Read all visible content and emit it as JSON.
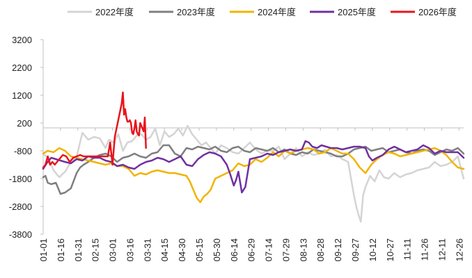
{
  "chart_data": {
    "type": "line",
    "title": "",
    "xlabel": "",
    "ylabel": "",
    "ylim": [
      -3800,
      3200
    ],
    "yticks": [
      3200,
      2200,
      1200,
      200,
      -800,
      -1800,
      -2800,
      -3800
    ],
    "xlim": [
      1,
      365
    ],
    "xtick_days": [
      1,
      16,
      31,
      46,
      61,
      76,
      91,
      106,
      121,
      136,
      151,
      166,
      181,
      196,
      211,
      226,
      241,
      256,
      271,
      286,
      301,
      316,
      331,
      346,
      361
    ],
    "xtick_labels": [
      "01-01",
      "01-16",
      "01-31",
      "02-15",
      "03-01",
      "03-16",
      "03-31",
      "04-15",
      "04-30",
      "05-15",
      "05-30",
      "06-14",
      "06-29",
      "07-14",
      "07-29",
      "08-13",
      "08-28",
      "09-12",
      "09-27",
      "10-12",
      "10-27",
      "11-11",
      "11-26",
      "12-11",
      "12-26"
    ],
    "grid": false,
    "legend_position": "top",
    "x_unit": "day of year",
    "series": [
      {
        "name": "2022年度",
        "color": "#d4d4d4",
        "x": [
          1,
          6,
          10,
          15,
          20,
          25,
          30,
          35,
          40,
          45,
          50,
          55,
          58,
          62,
          66,
          70,
          74,
          78,
          82,
          86,
          90,
          94,
          98,
          102,
          106,
          110,
          114,
          118,
          122,
          126,
          130,
          134,
          138,
          142,
          146,
          150,
          155,
          160,
          165,
          170,
          175,
          180,
          185,
          190,
          195,
          200,
          205,
          210,
          215,
          220,
          225,
          230,
          235,
          240,
          245,
          250,
          255,
          260,
          265,
          270,
          272,
          274,
          276,
          278,
          280,
          284,
          288,
          292,
          296,
          300,
          305,
          310,
          315,
          320,
          325,
          330,
          335,
          340,
          345,
          350,
          355,
          360,
          365
        ],
        "y": [
          -900,
          -1100,
          -1500,
          -1750,
          -1550,
          -1200,
          -1000,
          -150,
          -400,
          -300,
          -350,
          -700,
          -400,
          -500,
          -200,
          -800,
          -500,
          -450,
          -250,
          -200,
          -400,
          -300,
          0,
          -600,
          -100,
          -300,
          -200,
          0,
          -250,
          100,
          -200,
          -400,
          -600,
          -500,
          -700,
          -900,
          -600,
          -700,
          -850,
          -900,
          -700,
          -500,
          -750,
          -900,
          -800,
          -800,
          -650,
          -1100,
          -900,
          -700,
          -1000,
          -850,
          -950,
          -900,
          -750,
          -1000,
          -950,
          -1100,
          -1200,
          -2400,
          -2800,
          -3100,
          -3350,
          -2400,
          -2100,
          -1700,
          -1900,
          -1500,
          -1750,
          -1800,
          -1600,
          -1750,
          -1650,
          -1600,
          -1500,
          -1450,
          -1400,
          -1200,
          -1350,
          -1300,
          -1200,
          -1000,
          -1800
        ]
      },
      {
        "name": "2023年度",
        "color": "#7f7f7f",
        "x": [
          1,
          3,
          5,
          8,
          12,
          16,
          20,
          25,
          30,
          33,
          36,
          40,
          45,
          50,
          55,
          60,
          65,
          70,
          75,
          80,
          85,
          90,
          95,
          100,
          105,
          110,
          115,
          120,
          125,
          130,
          135,
          140,
          145,
          150,
          155,
          160,
          165,
          170,
          175,
          180,
          185,
          190,
          195,
          200,
          205,
          210,
          215,
          220,
          225,
          230,
          235,
          240,
          245,
          250,
          255,
          260,
          265,
          270,
          275,
          280,
          285,
          290,
          295,
          300,
          305,
          310,
          315,
          320,
          325,
          330,
          335,
          340,
          345,
          350,
          355,
          360,
          365
        ],
        "y": [
          -1750,
          -1700,
          -1950,
          -2000,
          -1950,
          -2350,
          -2300,
          -2150,
          -1600,
          -1400,
          -1300,
          -1200,
          -1050,
          -950,
          -900,
          -1000,
          -1200,
          -1050,
          -1000,
          -900,
          -1000,
          -1050,
          -900,
          -850,
          -600,
          -600,
          -900,
          -1000,
          -700,
          -750,
          -650,
          -700,
          -750,
          -650,
          -800,
          -850,
          -700,
          -650,
          -800,
          -850,
          -700,
          -750,
          -800,
          -700,
          -850,
          -750,
          -900,
          -950,
          -850,
          -900,
          -750,
          -800,
          -850,
          -900,
          -1000,
          -1000,
          -900,
          -750,
          -700,
          -650,
          -800,
          -750,
          -700,
          -850,
          -800,
          -750,
          -850,
          -900,
          -800,
          -750,
          -800,
          -950,
          -850,
          -750,
          -800,
          -700,
          -900
        ]
      },
      {
        "name": "2024年度",
        "color": "#f0b400",
        "x": [
          1,
          5,
          10,
          15,
          20,
          25,
          30,
          35,
          40,
          45,
          50,
          55,
          60,
          65,
          70,
          75,
          80,
          85,
          90,
          95,
          100,
          105,
          110,
          115,
          120,
          125,
          128,
          131,
          134,
          137,
          140,
          143,
          146,
          150,
          155,
          160,
          165,
          170,
          175,
          180,
          185,
          190,
          195,
          200,
          205,
          210,
          215,
          220,
          225,
          230,
          235,
          240,
          245,
          250,
          255,
          260,
          265,
          270,
          275,
          280,
          285,
          290,
          295,
          300,
          305,
          310,
          315,
          320,
          325,
          330,
          335,
          340,
          345,
          350,
          355,
          360,
          365
        ],
        "y": [
          -900,
          -800,
          -850,
          -700,
          -800,
          -1000,
          -1050,
          -1100,
          -1150,
          -1200,
          -1250,
          -1300,
          -1250,
          -1350,
          -1350,
          -1450,
          -1700,
          -1600,
          -1650,
          -1550,
          -1500,
          -1550,
          -1600,
          -1600,
          -1650,
          -1700,
          -1900,
          -2200,
          -2500,
          -2650,
          -2450,
          -2350,
          -2200,
          -1800,
          -1700,
          -1600,
          -1500,
          -1250,
          -1350,
          -1300,
          -1100,
          -1200,
          -1050,
          -850,
          -1000,
          -800,
          -900,
          -800,
          -750,
          -700,
          -750,
          -900,
          -850,
          -700,
          -800,
          -900,
          -900,
          -1100,
          -1400,
          -1600,
          -1300,
          -1100,
          -950,
          -850,
          -900,
          -1000,
          -950,
          -900,
          -850,
          -800,
          -750,
          -700,
          -800,
          -950,
          -1200,
          -1400,
          -1450
        ]
      },
      {
        "name": "2025年度",
        "color": "#7030a0",
        "x": [
          1,
          4,
          8,
          12,
          16,
          20,
          25,
          30,
          35,
          40,
          45,
          50,
          55,
          60,
          65,
          70,
          75,
          80,
          85,
          90,
          95,
          100,
          105,
          110,
          115,
          120,
          125,
          130,
          135,
          140,
          145,
          150,
          155,
          160,
          163,
          166,
          168,
          170,
          173,
          176,
          180,
          185,
          190,
          195,
          200,
          205,
          210,
          215,
          220,
          225,
          228,
          231,
          234,
          238,
          242,
          246,
          250,
          255,
          260,
          265,
          270,
          275,
          280,
          283,
          286,
          290,
          295,
          300,
          305,
          310,
          315,
          320,
          325,
          330,
          335,
          340,
          345,
          350,
          355,
          360,
          365
        ],
        "y": [
          -1450,
          -1250,
          -1050,
          -1100,
          -1150,
          -1200,
          -1250,
          -1100,
          -1150,
          -1000,
          -1050,
          -1050,
          -1150,
          -1200,
          -1350,
          -1300,
          -1400,
          -1450,
          -1300,
          -1200,
          -1150,
          -1050,
          -1100,
          -1200,
          -1100,
          -1000,
          -1300,
          -1350,
          -1100,
          -950,
          -850,
          -900,
          -1000,
          -1300,
          -1650,
          -2050,
          -1850,
          -1550,
          -2300,
          -2100,
          -1100,
          -1050,
          -1000,
          -900,
          -950,
          -850,
          -800,
          -750,
          -800,
          -750,
          -450,
          -500,
          -650,
          -700,
          -600,
          -650,
          -700,
          -700,
          -750,
          -700,
          -650,
          -650,
          -700,
          -1000,
          -1150,
          -1050,
          -950,
          -750,
          -650,
          -750,
          -850,
          -800,
          -750,
          -600,
          -700,
          -900,
          -800,
          -850,
          -850,
          -850,
          -1050
        ]
      },
      {
        "name": "2026年度",
        "color": "#e8141c",
        "x": [
          1,
          3,
          5,
          7,
          9,
          11,
          13,
          15,
          18,
          21,
          24,
          27,
          30,
          33,
          36,
          39,
          42,
          45,
          48,
          51,
          54,
          57,
          59,
          61,
          63,
          65,
          67,
          69,
          70,
          71,
          72,
          73,
          74,
          75,
          76,
          77,
          78,
          79,
          80,
          81,
          82,
          83,
          84,
          85,
          86,
          87,
          88,
          89,
          90
        ],
        "y": [
          -1400,
          -1300,
          -1000,
          -1300,
          -1200,
          -1300,
          -1200,
          -1100,
          -950,
          -1000,
          -1200,
          -1050,
          -1000,
          -950,
          -1000,
          -1000,
          -1000,
          -1000,
          -1000,
          -1000,
          -1000,
          -1000,
          -500,
          -1300,
          -300,
          100,
          500,
          900,
          1300,
          500,
          700,
          400,
          250,
          250,
          300,
          200,
          -150,
          -200,
          0,
          300,
          -100,
          -200,
          -250,
          200,
          100,
          0,
          -100,
          400,
          -700
        ]
      }
    ]
  }
}
